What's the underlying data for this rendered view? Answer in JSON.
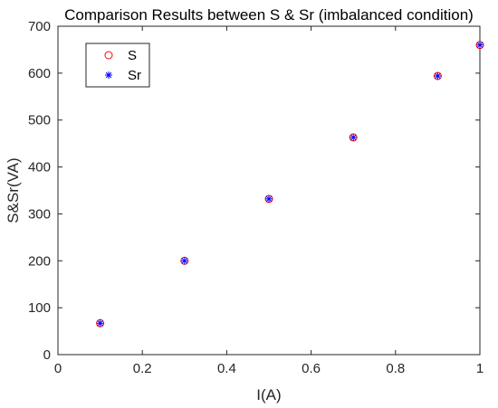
{
  "chart_data": {
    "type": "scatter",
    "title": "Comparison Results between S & Sr (imbalanced condition)",
    "xlabel": "I(A)",
    "ylabel": "S&Sr(VA)",
    "xlim": [
      0,
      1
    ],
    "ylim": [
      0,
      700
    ],
    "xticks": [
      0,
      0.2,
      0.4,
      0.6,
      0.8,
      1
    ],
    "xtick_labels": [
      "0",
      "0.2",
      "0.4",
      "0.6",
      "0.8",
      "1"
    ],
    "yticks": [
      0,
      100,
      200,
      300,
      400,
      500,
      600,
      700
    ],
    "ytick_labels": [
      "0",
      "100",
      "200",
      "300",
      "400",
      "500",
      "600",
      "700"
    ],
    "grid": false,
    "legend_position": "top-left",
    "series": [
      {
        "name": "S",
        "marker": "circle",
        "color": "#ff0000",
        "x": [
          0.1,
          0.3,
          0.5,
          0.7,
          0.9,
          1.0
        ],
        "y": [
          67,
          200,
          332,
          463,
          594,
          660
        ]
      },
      {
        "name": "Sr",
        "marker": "asterisk",
        "color": "#0000ff",
        "x": [
          0.1,
          0.3,
          0.5,
          0.7,
          0.9,
          1.0
        ],
        "y": [
          67,
          200,
          332,
          463,
          594,
          660
        ]
      }
    ]
  }
}
